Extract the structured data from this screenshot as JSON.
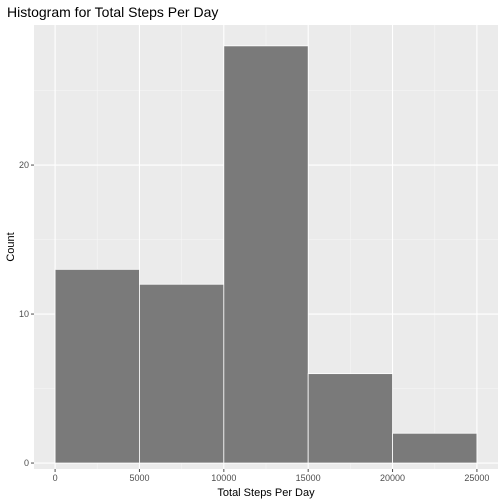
{
  "chart_data": {
    "type": "bar",
    "title": "Histogram for Total Steps Per Day",
    "xlabel": "Total Steps Per Day",
    "ylabel": "Count",
    "bins": [
      {
        "start": 0,
        "end": 5000,
        "count": 13
      },
      {
        "start": 5000,
        "end": 10000,
        "count": 12
      },
      {
        "start": 10000,
        "end": 15000,
        "count": 28
      },
      {
        "start": 15000,
        "end": 20000,
        "count": 6
      },
      {
        "start": 20000,
        "end": 25000,
        "count": 2
      }
    ],
    "xlim": [
      -1250,
      26250
    ],
    "ylim": [
      -0.4,
      29.4
    ],
    "x_ticks": [
      0,
      5000,
      10000,
      15000,
      20000,
      25000
    ],
    "x_tick_labels": [
      "0",
      "5000",
      "10000",
      "15000",
      "20000",
      "25000"
    ],
    "x_minor_ticks": [
      2500,
      7500,
      12500,
      17500,
      22500
    ],
    "y_ticks": [
      0,
      10,
      20
    ],
    "y_tick_labels": [
      "0",
      "10",
      "20"
    ],
    "y_minor_ticks": [
      5,
      15,
      25
    ],
    "grid": true,
    "colors": {
      "panel_background": "#ebebeb",
      "grid_major": "#ffffff",
      "grid_minor": "#f5f5f5",
      "bar_fill": "#7a7a7a",
      "bar_outline": "#ffffff",
      "tick_color": "#4d4d4d"
    }
  }
}
